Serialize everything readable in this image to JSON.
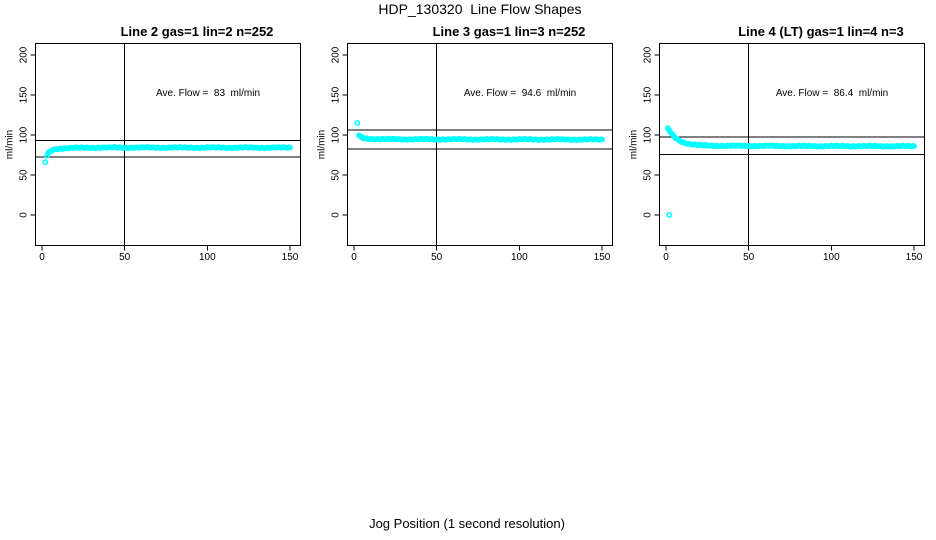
{
  "figure": {
    "title": "HDP_130320  Line Flow Shapes",
    "xlabel": "Jog Position (1 second resolution)",
    "background": "#ffffff"
  },
  "axes": {
    "x_ticks": [
      0,
      50,
      100,
      150
    ],
    "y_ticks": [
      0,
      50,
      100,
      150,
      200
    ],
    "ylabel": "ml/min",
    "xlim": [
      -4,
      156
    ],
    "ylim": [
      -38,
      215
    ],
    "grid": false,
    "marker_color": "#00FFFF",
    "line_color": "#000000"
  },
  "chart_data": [
    {
      "type": "scatter",
      "title": "Line 2 gas=1 lin=2 n=252",
      "ave_flow_label": "Ave. Flow =  83  ml/min",
      "ave_flow": 83,
      "n": 252,
      "vline_x": 50,
      "ref_lines": {
        "upper": 93.4,
        "lower": 72.6
      },
      "outlier_points": [
        [
          2,
          66
        ]
      ],
      "profile_points": [
        [
          3,
          74
        ],
        [
          4,
          77.5
        ],
        [
          5,
          79.5
        ],
        [
          6,
          80.8
        ],
        [
          7,
          81.6
        ],
        [
          8,
          82.2
        ],
        [
          10,
          82.9
        ],
        [
          13,
          83.4
        ],
        [
          16,
          83.7
        ],
        [
          20,
          83.9
        ],
        [
          26,
          84.1
        ],
        [
          34,
          84.25
        ],
        [
          50,
          84.3
        ],
        [
          70,
          84.3
        ],
        [
          100,
          84.25
        ],
        [
          150,
          84.2
        ]
      ]
    },
    {
      "type": "scatter",
      "title": "Line 3 gas=1 lin=3 n=252",
      "ave_flow_label": "Ave. Flow =  94.6  ml/min",
      "ave_flow": 94.6,
      "n": 252,
      "vline_x": 50,
      "ref_lines": {
        "upper": 106.4,
        "lower": 82.8
      },
      "outlier_points": [
        [
          2,
          115
        ]
      ],
      "profile_points": [
        [
          3,
          99.5
        ],
        [
          4,
          97.6
        ],
        [
          5,
          96.6
        ],
        [
          6,
          96
        ],
        [
          8,
          95.4
        ],
        [
          10,
          95.1
        ],
        [
          14,
          94.9
        ],
        [
          20,
          94.8
        ],
        [
          30,
          94.7
        ],
        [
          50,
          94.6
        ],
        [
          80,
          94.5
        ],
        [
          120,
          94.4
        ],
        [
          150,
          94.3
        ]
      ]
    },
    {
      "type": "scatter",
      "title": "Line 4 (LT) gas=1 lin=4 n=3",
      "ave_flow_label": "Ave. Flow =  86.4  ml/min",
      "ave_flow": 86.4,
      "n": 3,
      "vline_x": 50,
      "ref_lines": {
        "upper": 97.2,
        "lower": 75.6
      },
      "outlier_points": [
        [
          2,
          0
        ]
      ],
      "profile_points": [
        [
          1,
          108
        ],
        [
          2,
          105.5
        ],
        [
          3,
          102.5
        ],
        [
          4,
          100
        ],
        [
          5,
          97.8
        ],
        [
          6,
          96
        ],
        [
          7,
          94.5
        ],
        [
          8,
          93.2
        ],
        [
          9,
          92.2
        ],
        [
          10,
          91.3
        ],
        [
          11,
          90.6
        ],
        [
          12,
          90
        ],
        [
          13,
          89.5
        ],
        [
          14,
          89
        ],
        [
          15,
          88.7
        ],
        [
          16,
          88.3
        ],
        [
          17,
          88
        ],
        [
          18,
          87.8
        ],
        [
          19,
          87.5
        ],
        [
          20,
          87.3
        ],
        [
          22,
          87
        ],
        [
          24,
          86.85
        ],
        [
          26,
          86.75
        ],
        [
          28,
          86.65
        ],
        [
          30,
          86.6
        ],
        [
          35,
          86.5
        ],
        [
          40,
          86.4
        ],
        [
          50,
          86.35
        ],
        [
          60,
          86.3
        ],
        [
          80,
          86.2
        ],
        [
          100,
          86.2
        ],
        [
          120,
          86.1
        ],
        [
          150,
          86
        ]
      ]
    }
  ]
}
